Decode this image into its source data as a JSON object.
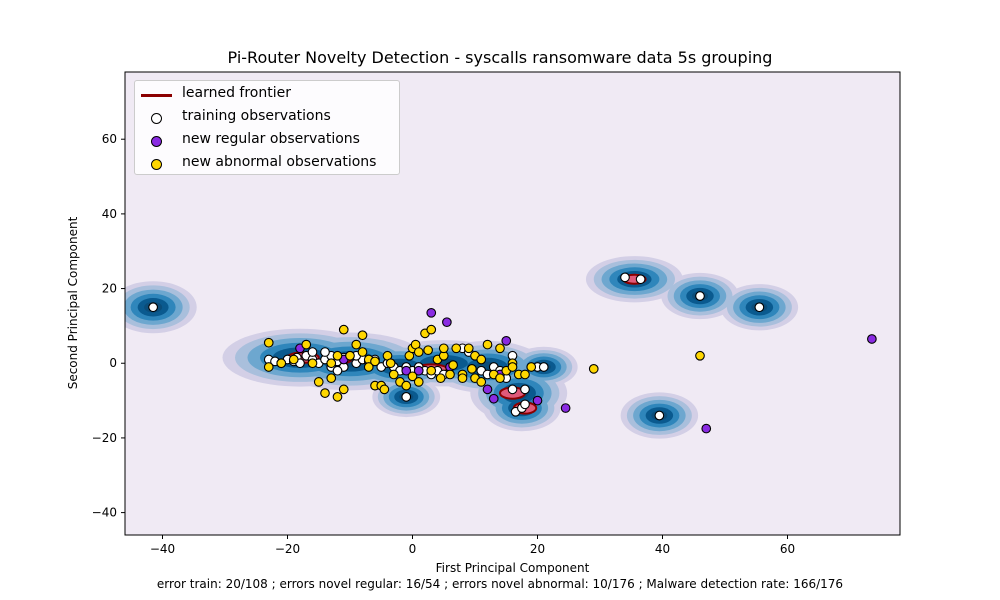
{
  "chart_data": {
    "type": "scatter",
    "title": "Pi-Router Novelty Detection - syscalls ransomware data 5s grouping",
    "xlabel": "First Principal Component",
    "ylabel": "Second Principal Component",
    "footer": "error train: 20/108 ; errors novel regular: 16/54 ; errors novel abnormal: 10/176 ; Malware detection rate: 166/176",
    "xlim": [
      -46,
      78
    ],
    "ylim": [
      -46,
      78
    ],
    "xticks": [
      -40,
      -20,
      0,
      20,
      40,
      60
    ],
    "yticks": [
      -40,
      -20,
      0,
      20,
      40,
      60
    ],
    "grid": false,
    "legend_position": "top-left",
    "background_color": "#f0eaf4",
    "legend": [
      {
        "label": "learned frontier",
        "kind": "line",
        "color": "#8b0000"
      },
      {
        "label": "training observations",
        "kind": "marker",
        "color": "#ffffff"
      },
      {
        "label": "new regular observations",
        "kind": "marker",
        "color": "#8a2be2"
      },
      {
        "label": "new abnormal observations",
        "kind": "marker",
        "color": "#ffd700"
      }
    ],
    "density_regions": [
      {
        "cx": -41.5,
        "cy": 15,
        "rx": 4.5,
        "ry": 4.5
      },
      {
        "cx": -18,
        "cy": 1.5,
        "rx": 8,
        "ry": 5
      },
      {
        "cx": -10,
        "cy": 0.5,
        "rx": 8,
        "ry": 5
      },
      {
        "cx": -2,
        "cy": -1,
        "rx": 6,
        "ry": 4
      },
      {
        "cx": 5,
        "cy": 0,
        "rx": 7,
        "ry": 4
      },
      {
        "cx": -1,
        "cy": -9,
        "rx": 3.5,
        "ry": 3.5
      },
      {
        "cx": 12,
        "cy": -1,
        "rx": 6,
        "ry": 4.5
      },
      {
        "cx": 17,
        "cy": -8,
        "rx": 5,
        "ry": 5
      },
      {
        "cx": 17.5,
        "cy": -12,
        "rx": 4,
        "ry": 4
      },
      {
        "cx": 21,
        "cy": -1,
        "rx": 3.5,
        "ry": 3.5
      },
      {
        "cx": 35.5,
        "cy": 22.5,
        "rx": 5,
        "ry": 4
      },
      {
        "cx": 46,
        "cy": 18,
        "rx": 4,
        "ry": 4
      },
      {
        "cx": 55.5,
        "cy": 15,
        "rx": 4,
        "ry": 4
      },
      {
        "cx": 39.5,
        "cy": -14,
        "rx": 4,
        "ry": 4
      }
    ],
    "frontier_regions": [
      {
        "cx": -17.5,
        "cy": 1.5,
        "rx": 2.5,
        "ry": 1.4
      },
      {
        "cx": -12,
        "cy": 1,
        "rx": 2.2,
        "ry": 1.2
      },
      {
        "cx": 3,
        "cy": -1.5,
        "rx": 2.5,
        "ry": 1.2
      },
      {
        "cx": 16,
        "cy": -8,
        "rx": 2,
        "ry": 1.5
      },
      {
        "cx": 18,
        "cy": -12,
        "rx": 1.8,
        "ry": 1.5
      },
      {
        "cx": 35.5,
        "cy": 22.5,
        "rx": 1.8,
        "ry": 1.2
      }
    ],
    "series": [
      {
        "name": "training observations",
        "color": "#ffffff",
        "points": [
          [
            -41.5,
            15
          ],
          [
            -1,
            -9
          ],
          [
            39.5,
            -14
          ],
          [
            46,
            18
          ],
          [
            55.5,
            15
          ],
          [
            34,
            23
          ],
          [
            36.5,
            22.5
          ],
          [
            -23,
            1
          ],
          [
            -22,
            0.5
          ],
          [
            -21,
            0
          ],
          [
            -20,
            1
          ],
          [
            -19,
            0.5
          ],
          [
            -18.5,
            1.5
          ],
          [
            -18,
            0
          ],
          [
            -17,
            2
          ],
          [
            -16,
            1
          ],
          [
            -15,
            0
          ],
          [
            -14,
            1
          ],
          [
            -13,
            2
          ],
          [
            -13,
            -1
          ],
          [
            -12,
            0.5
          ],
          [
            -11,
            1.5
          ],
          [
            -11,
            -1
          ],
          [
            -10,
            2
          ],
          [
            -9,
            0
          ],
          [
            -8,
            1
          ],
          [
            -7,
            0.5
          ],
          [
            -6,
            1
          ],
          [
            -5,
            -1
          ],
          [
            -4,
            0
          ],
          [
            -3,
            -1
          ],
          [
            -2,
            -2
          ],
          [
            -1,
            -1
          ],
          [
            0,
            -2
          ],
          [
            1,
            -1
          ],
          [
            2,
            -2
          ],
          [
            3,
            -3
          ],
          [
            4,
            -2
          ],
          [
            5,
            -3
          ],
          [
            8,
            4
          ],
          [
            9,
            3
          ],
          [
            11,
            -2
          ],
          [
            12,
            -3
          ],
          [
            13,
            -1
          ],
          [
            14,
            -2
          ],
          [
            15,
            -4
          ],
          [
            16,
            -7
          ],
          [
            16.5,
            -13
          ],
          [
            17.5,
            -12
          ],
          [
            18,
            -11
          ],
          [
            18,
            -7
          ],
          [
            16,
            2
          ],
          [
            20,
            -1
          ],
          [
            21,
            -1
          ],
          [
            -16,
            3
          ],
          [
            -14,
            3
          ],
          [
            -12,
            -2
          ],
          [
            -9,
            2
          ]
        ]
      },
      {
        "name": "new regular observations",
        "color": "#8a2be2",
        "points": [
          [
            73.5,
            6.5
          ],
          [
            47,
            -17.5
          ],
          [
            24.5,
            -12
          ],
          [
            20,
            -10
          ],
          [
            15,
            6
          ],
          [
            12,
            -7
          ],
          [
            13,
            -9.5
          ],
          [
            3,
            13.5
          ],
          [
            5.5,
            11
          ],
          [
            1,
            -2
          ],
          [
            -1,
            -2
          ],
          [
            -18,
            4
          ],
          [
            -11,
            1
          ],
          [
            14,
            -3
          ],
          [
            6,
            -1
          ]
        ]
      },
      {
        "name": "new abnormal observations",
        "color": "#ffd700",
        "points": [
          [
            46,
            2
          ],
          [
            29,
            -1.5
          ],
          [
            -23,
            5.5
          ],
          [
            -23,
            -1
          ],
          [
            -21,
            0
          ],
          [
            -19,
            1
          ],
          [
            -17,
            5
          ],
          [
            -16,
            0
          ],
          [
            -15,
            -5
          ],
          [
            -14,
            -8
          ],
          [
            -13,
            -4
          ],
          [
            -12,
            -9
          ],
          [
            -11,
            -7
          ],
          [
            -11,
            9
          ],
          [
            -10,
            2
          ],
          [
            -9,
            5
          ],
          [
            -8,
            7.5
          ],
          [
            -8,
            3
          ],
          [
            -7,
            1
          ],
          [
            -6,
            -6
          ],
          [
            -5,
            -6
          ],
          [
            -4.5,
            -7
          ],
          [
            -4,
            2
          ],
          [
            -3,
            -3
          ],
          [
            -2,
            -5
          ],
          [
            -1,
            -6
          ],
          [
            -0.5,
            2
          ],
          [
            0,
            4
          ],
          [
            0,
            -3.5
          ],
          [
            0.5,
            5
          ],
          [
            1,
            3
          ],
          [
            1,
            -5
          ],
          [
            2,
            8
          ],
          [
            2.5,
            3.5
          ],
          [
            3,
            9
          ],
          [
            3,
            -2
          ],
          [
            4,
            1
          ],
          [
            4.5,
            -4
          ],
          [
            5,
            2
          ],
          [
            5,
            4
          ],
          [
            6,
            -3
          ],
          [
            7,
            4
          ],
          [
            8,
            -3
          ],
          [
            8,
            -4
          ],
          [
            9,
            4
          ],
          [
            10,
            -4
          ],
          [
            10,
            2
          ],
          [
            11,
            1
          ],
          [
            11,
            -5
          ],
          [
            12,
            5
          ],
          [
            13,
            -3
          ],
          [
            14,
            -4
          ],
          [
            15,
            -2
          ],
          [
            16,
            0
          ],
          [
            16,
            -1
          ],
          [
            17,
            -3
          ],
          [
            18,
            -3
          ],
          [
            19,
            -1
          ],
          [
            -13,
            0
          ],
          [
            -12,
            2
          ],
          [
            -7,
            -1
          ],
          [
            -6,
            0.5
          ],
          [
            -3.5,
            0
          ],
          [
            6.5,
            -0.5
          ],
          [
            9.5,
            -1.5
          ],
          [
            14,
            4
          ]
        ]
      }
    ]
  }
}
